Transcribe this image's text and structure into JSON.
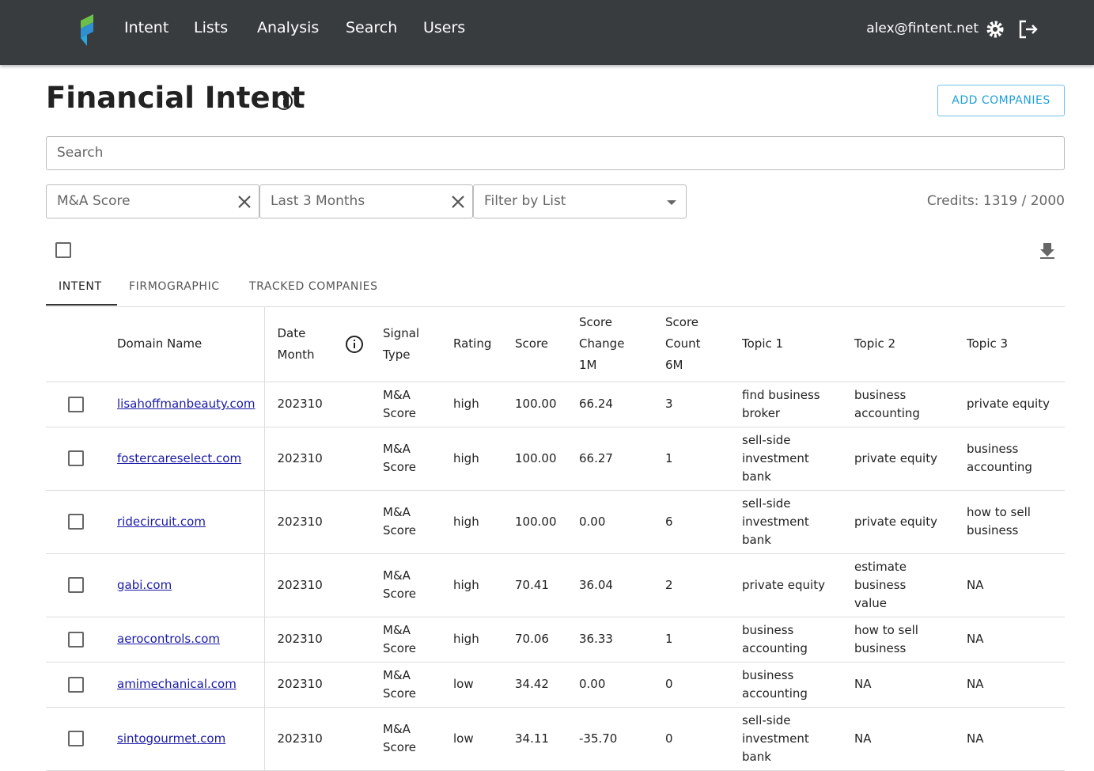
{
  "nav": {
    "links": [
      "Intent",
      "Lists",
      "Analysis",
      "Search",
      "Users"
    ],
    "user": "alex@fintent.net"
  },
  "header": {
    "title": "Financial Intent",
    "button": "ADD COMPANIES"
  },
  "search": {
    "placeholder": "Search"
  },
  "filters": {
    "items": [
      "M&A Score",
      "Last 3 Months",
      "Filter by List"
    ],
    "credits": "Credits: 1319 / 2000"
  },
  "tabs": [
    "INTENT",
    "FIRMOGRAPHIC",
    "TRACKED COMPANIES"
  ],
  "table": {
    "columns": [
      "Domain Name",
      "Date Month",
      "Signal Type",
      "Rating",
      "Score",
      "Score Change 1M",
      "Score Count 6M",
      "Topic 1",
      "Topic 2",
      "Topic 3"
    ],
    "rows": [
      [
        "lisahoffmanbeauty.com",
        "202310",
        "M&A Score",
        "high",
        "100.00",
        "66.24",
        "3",
        "find business broker",
        "business accounting",
        "private equity"
      ],
      [
        "fostercareselect.com",
        "202310",
        "M&A Score",
        "high",
        "100.00",
        "66.27",
        "1",
        "sell-side investment bank",
        "private equity",
        "business accounting"
      ],
      [
        "ridecircuit.com",
        "202310",
        "M&A Score",
        "high",
        "100.00",
        "0.00",
        "6",
        "sell-side investment bank",
        "private equity",
        "how to sell business"
      ],
      [
        "gabi.com",
        "202310",
        "M&A Score",
        "high",
        "70.41",
        "36.04",
        "2",
        "private equity",
        "estimate business value",
        "NA"
      ],
      [
        "aerocontrols.com",
        "202310",
        "M&A Score",
        "high",
        "70.06",
        "36.33",
        "1",
        "business accounting",
        "how to sell business",
        "NA"
      ],
      [
        "amimechanical.com",
        "202310",
        "M&A Score",
        "low",
        "34.42",
        "0.00",
        "0",
        "business accounting",
        "NA",
        "NA"
      ],
      [
        "sintogourmet.com",
        "202310",
        "M&A Score",
        "low",
        "34.11",
        "-35.70",
        "0",
        "sell-side investment bank",
        "NA",
        "NA"
      ]
    ]
  }
}
